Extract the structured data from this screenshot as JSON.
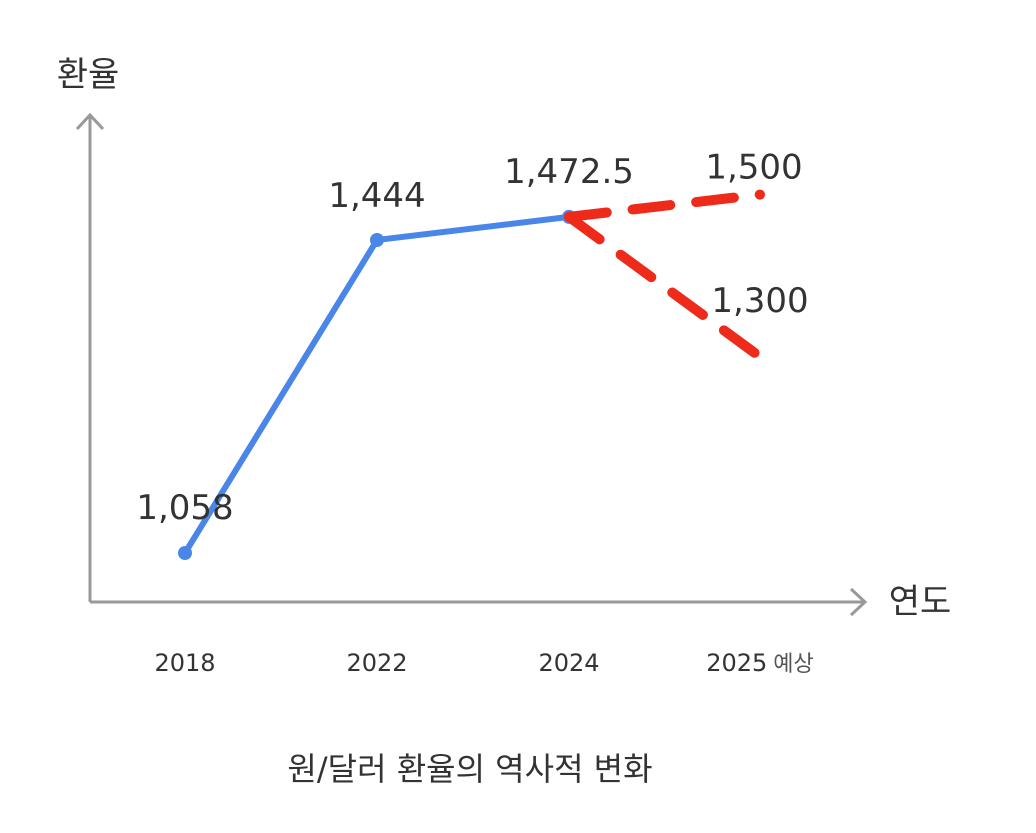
{
  "chart_data": {
    "type": "line",
    "title": "원/달러 환율의 역사적 변화",
    "xlabel": "연도",
    "ylabel": "환율",
    "categories": [
      {
        "year": "2018",
        "suffix": ""
      },
      {
        "year": "2022",
        "suffix": ""
      },
      {
        "year": "2024",
        "suffix": ""
      },
      {
        "year": "2025",
        "suffix": "예상"
      }
    ],
    "series": [
      {
        "style": "solid",
        "color": "#4A86E8",
        "points": [
          {
            "x": "2018",
            "y": 1058,
            "label": "1,058"
          },
          {
            "x": "2022",
            "y": 1444,
            "label": "1,444"
          },
          {
            "x": "2024",
            "y": 1472.5,
            "label": "1,472.5"
          }
        ]
      },
      {
        "style": "dashed",
        "color": "#EE2A1B",
        "points": [
          {
            "x": "2024",
            "y": 1472.5
          },
          {
            "x": "2025",
            "y": 1500,
            "label": "1,500"
          }
        ]
      },
      {
        "style": "dashed",
        "color": "#EE2A1B",
        "points": [
          {
            "x": "2024",
            "y": 1472.5
          },
          {
            "x": "2025",
            "y": 1300,
            "label": "1,300"
          }
        ]
      }
    ],
    "ylim": [
      1000,
      1600
    ],
    "grid": false,
    "legend": "none",
    "axis_color": "#999999"
  }
}
